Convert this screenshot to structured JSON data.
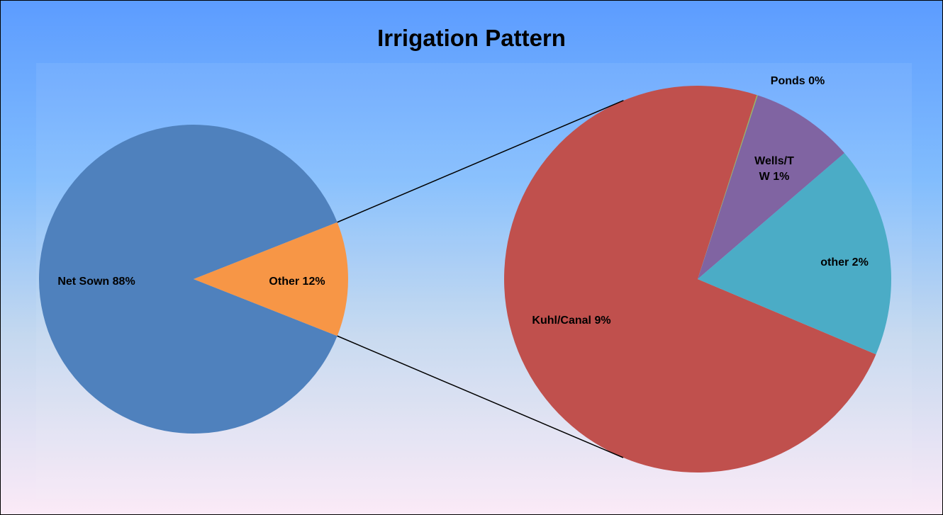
{
  "chart_data": {
    "type": "pie-of-pie",
    "title": "Irrigation Pattern",
    "categories": [
      "Net Sown",
      "Other"
    ],
    "values": [
      88,
      12
    ],
    "value_labels": [
      "88%",
      "12%"
    ],
    "colors": [
      "#4f81bd",
      "#f79646"
    ],
    "secondary": {
      "categories": [
        "Kuhl/Canal",
        "Ponds",
        "Wells/TW",
        "other"
      ],
      "values": [
        8.83,
        0.01,
        1.04,
        2.12
      ],
      "value_labels": [
        "9%",
        "0%",
        "1%",
        "2%"
      ],
      "colors": [
        "#c0504d",
        "#9bbb59",
        "#8064a2",
        "#4bacc6"
      ]
    }
  }
}
